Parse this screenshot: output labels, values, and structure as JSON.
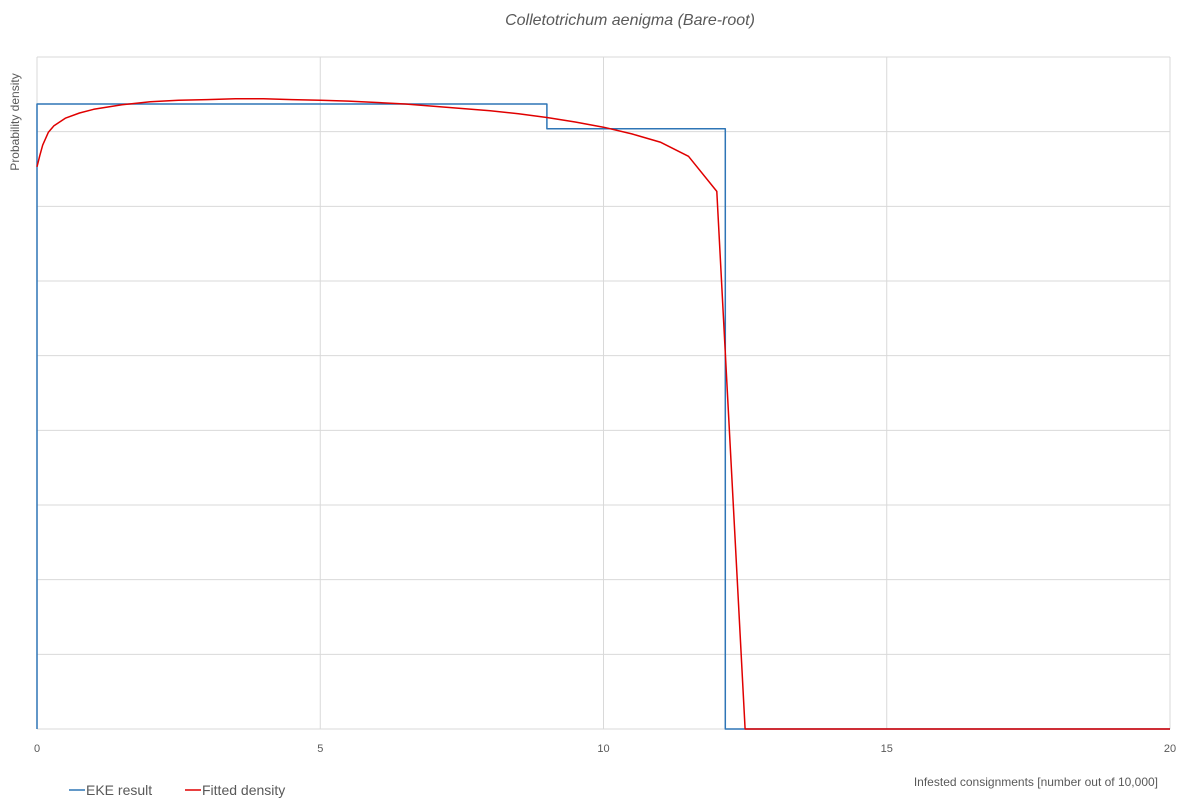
{
  "chart_data": {
    "type": "line",
    "title": "Colletotrichum aenigma  (Bare-root)",
    "xlabel": "Infested consignments [number out of 10,000]",
    "ylabel": "Probability density",
    "xlim": [
      0,
      20
    ],
    "ylim": [
      0,
      0.09
    ],
    "x_ticks": [
      "0",
      "5",
      "10",
      "15",
      "20"
    ],
    "y_ticks_labeled": false,
    "y_gridline_count": 9,
    "grid": true,
    "legend": "bottom-left",
    "series": [
      {
        "name": "EKE result",
        "color": "#2E75B6",
        "style": "step",
        "x": [
          0,
          0,
          9,
          9,
          12.15,
          12.15,
          20
        ],
        "y": [
          0,
          0.0837,
          0.0837,
          0.0804,
          0.0804,
          0,
          0
        ]
      },
      {
        "name": "Fitted density",
        "color": "#E00000",
        "style": "line",
        "x": [
          0,
          0.05,
          0.1,
          0.2,
          0.3,
          0.5,
          0.75,
          1,
          1.5,
          2,
          2.5,
          3,
          3.5,
          4,
          4.5,
          5,
          5.5,
          6,
          6.5,
          7,
          7.5,
          8,
          8.5,
          9,
          9.5,
          10,
          10.5,
          11,
          11.5,
          12,
          12.5,
          13,
          14,
          15,
          16,
          17,
          18,
          19,
          20
        ],
        "y": [
          0.0753,
          0.0768,
          0.0782,
          0.0799,
          0.0808,
          0.0818,
          0.0825,
          0.083,
          0.0836,
          0.084,
          0.0842,
          0.0843,
          0.0844,
          0.0844,
          0.0843,
          0.0842,
          0.0841,
          0.0839,
          0.0837,
          0.0834,
          0.0831,
          0.0828,
          0.0824,
          0.0819,
          0.0813,
          0.0806,
          0.0797,
          0.0786,
          0.0767,
          0.072,
          0,
          0,
          0,
          0,
          0,
          0,
          0,
          0,
          0
        ]
      }
    ]
  }
}
